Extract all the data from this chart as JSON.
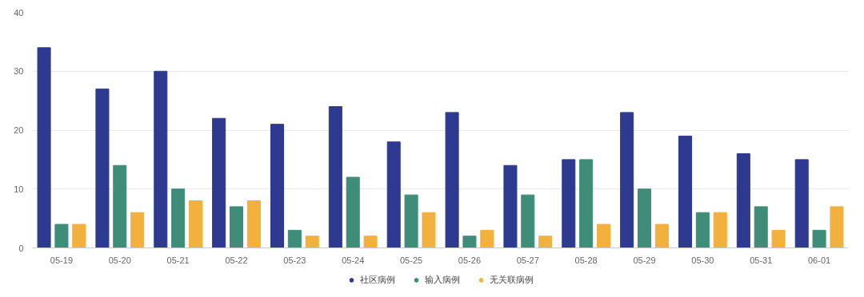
{
  "chart_data": {
    "type": "bar",
    "categories": [
      "05-19",
      "05-20",
      "05-21",
      "05-22",
      "05-23",
      "05-24",
      "05-25",
      "05-26",
      "05-27",
      "05-28",
      "05-29",
      "05-30",
      "05-31",
      "06-01"
    ],
    "series": [
      {
        "name": "社区病例",
        "color": "#2e3a8f",
        "values": [
          34,
          27,
          30,
          22,
          21,
          24,
          18,
          23,
          14,
          15,
          23,
          19,
          16,
          15
        ]
      },
      {
        "name": "输入病例",
        "color": "#3f8c78",
        "values": [
          4,
          14,
          10,
          7,
          3,
          12,
          9,
          2,
          9,
          15,
          10,
          6,
          7,
          3
        ]
      },
      {
        "name": "无关联病例",
        "color": "#f2b03d",
        "values": [
          4,
          6,
          8,
          8,
          2,
          2,
          6,
          3,
          2,
          4,
          4,
          6,
          3,
          7
        ]
      }
    ],
    "ylim": [
      0,
      40
    ],
    "yticks": [
      0,
      10,
      20,
      30,
      40
    ],
    "grid": "y",
    "legend": "bottom"
  }
}
